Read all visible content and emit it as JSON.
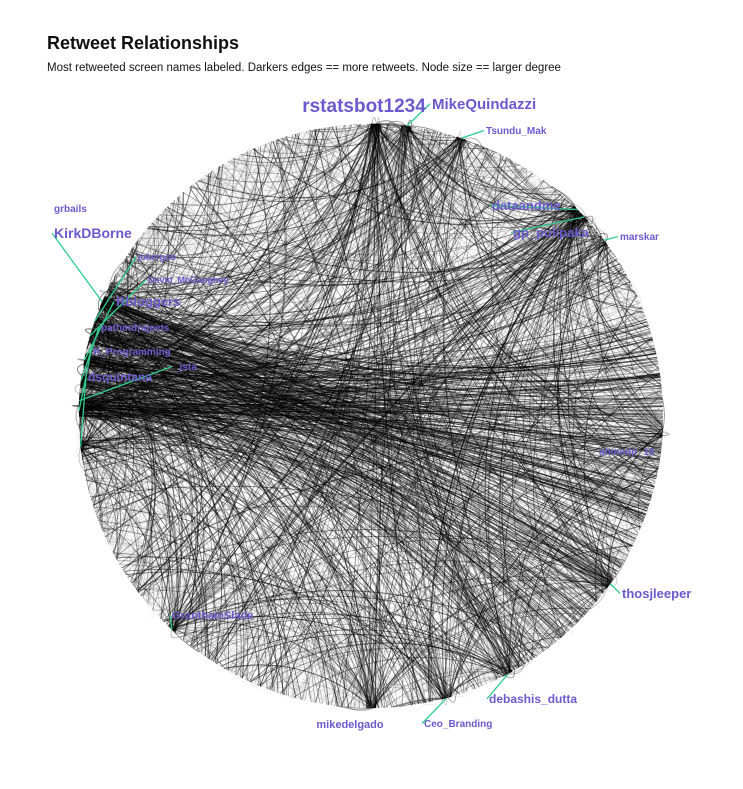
{
  "chart_data": {
    "type": "network",
    "layout": "circle",
    "title": "Retweet Relationships",
    "subtitle": "Most retweeted screen names labeled. Darkers edges == more retweets. Node size == larger degree",
    "edge_color": "#000000",
    "label_color": "#6a5acd",
    "leader_color": "#2ecc8f",
    "labeled_nodes": [
      {
        "name": "rstatsbot1234",
        "degree": 10
      },
      {
        "name": "MikeQuindazzi",
        "degree": 8
      },
      {
        "name": "Tsundu_Mak",
        "degree": 5
      },
      {
        "name": "dataandme",
        "degree": 7
      },
      {
        "name": "gp_pulipaka",
        "degree": 7
      },
      {
        "name": "marskar",
        "degree": 4
      },
      {
        "name": "ahmedjr_16",
        "degree": 5
      },
      {
        "name": "thosjleeper",
        "degree": 7
      },
      {
        "name": "debashis_dutta",
        "degree": 6
      },
      {
        "name": "Ceo_Branding",
        "degree": 5
      },
      {
        "name": "mikedelgado",
        "degree": 6
      },
      {
        "name": "GranthamSlade",
        "degree": 6
      },
      {
        "name": "dsquintana",
        "degree": 6
      },
      {
        "name": "R_Programming",
        "degree": 5
      },
      {
        "name": "_jsta",
        "degree": 5
      },
      {
        "name": "pathindrajeets",
        "degree": 5
      },
      {
        "name": "Rbloggers",
        "degree": 8
      },
      {
        "name": "David_McGaughey",
        "degree": 4
      },
      {
        "name": "jokergoo",
        "degree": 4
      },
      {
        "name": "KirkDBorne",
        "degree": 8
      },
      {
        "name": "grbails",
        "degree": 4
      }
    ]
  }
}
